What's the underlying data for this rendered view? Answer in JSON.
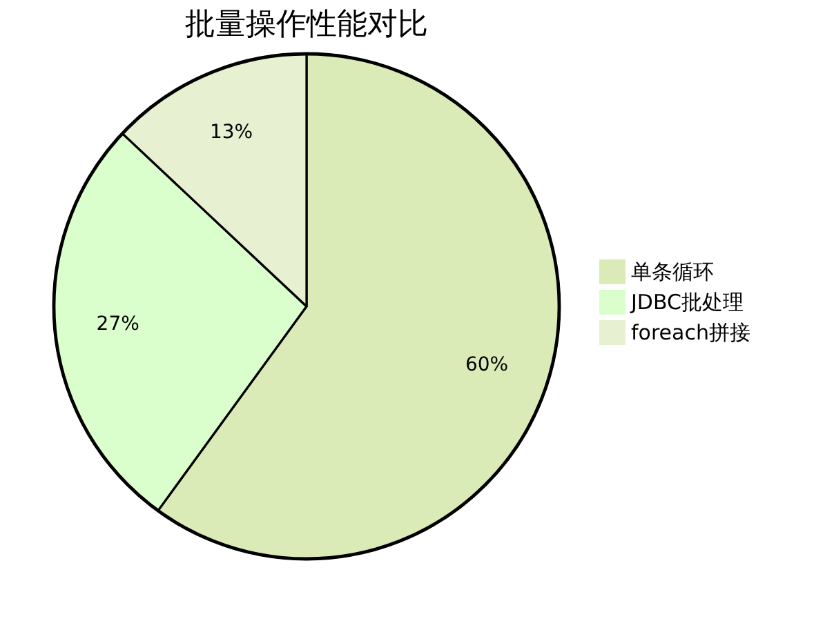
{
  "chart_data": {
    "type": "pie",
    "title": "批量操作性能对比",
    "categories": [
      "单条循环",
      "JDBC批处理",
      "foreach拼接"
    ],
    "values": [
      60,
      27,
      13
    ],
    "value_labels": [
      "60%",
      "27%",
      "13%"
    ],
    "colors": [
      "#dbebb7",
      "#dbffcc",
      "#e8f0d2"
    ],
    "legend": "right"
  }
}
